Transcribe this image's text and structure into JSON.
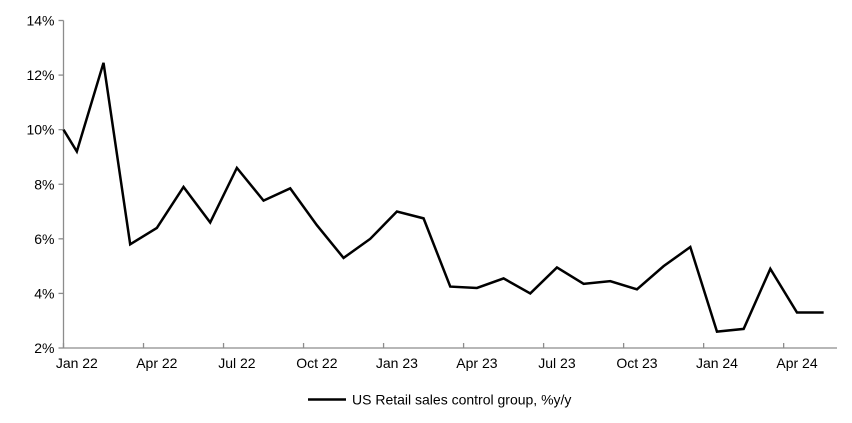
{
  "chart_data": {
    "type": "line",
    "title": "",
    "categories": [
      "Jan 22",
      "Feb 22",
      "Mar 22",
      "Apr 22",
      "May 22",
      "Jun 22",
      "Jul 22",
      "Aug 22",
      "Sep 22",
      "Oct 22",
      "Nov 22",
      "Dec 22",
      "Jan 23",
      "Feb 23",
      "Mar 23",
      "Apr 23",
      "May 23",
      "Jun 23",
      "Jul 23",
      "Aug 23",
      "Sep 23",
      "Oct 23",
      "Nov 23",
      "Dec 23",
      "Jan 24",
      "Feb 24",
      "Mar 24",
      "Apr 24",
      "May 24"
    ],
    "series": [
      {
        "name": "US Retail sales control group, %y/y",
        "color": "#000000",
        "line_width": 2.5,
        "lead_in_value_at_left_axis": 10.0,
        "values": [
          9.2,
          12.45,
          5.8,
          6.4,
          7.9,
          6.6,
          8.6,
          7.4,
          7.85,
          6.5,
          5.3,
          6.0,
          7.0,
          6.75,
          4.25,
          4.2,
          4.55,
          4.0,
          4.95,
          4.35,
          4.45,
          4.15,
          5.0,
          5.7,
          2.6,
          2.7,
          4.9,
          3.3,
          3.3
        ]
      }
    ],
    "ylim": [
      2,
      14
    ],
    "ytick_values": [
      2,
      4,
      6,
      8,
      10,
      12,
      14
    ],
    "ytick_labels": [
      "2%",
      "4%",
      "6%",
      "8%",
      "10%",
      "12%",
      "14%"
    ],
    "xtick_labels": [
      "Jan 22",
      "Apr 22",
      "Jul 22",
      "Oct 22",
      "Jan 23",
      "Apr 23",
      "Jul 23",
      "Oct 23",
      "Jan 24",
      "Apr 24"
    ],
    "xtick_interval_months": 3,
    "grid": false,
    "axis_color": "#8c8c8c",
    "legend": {
      "position": "bottom-center",
      "label": "US Retail sales control group, %y/y",
      "swatch_color": "#000000"
    }
  }
}
